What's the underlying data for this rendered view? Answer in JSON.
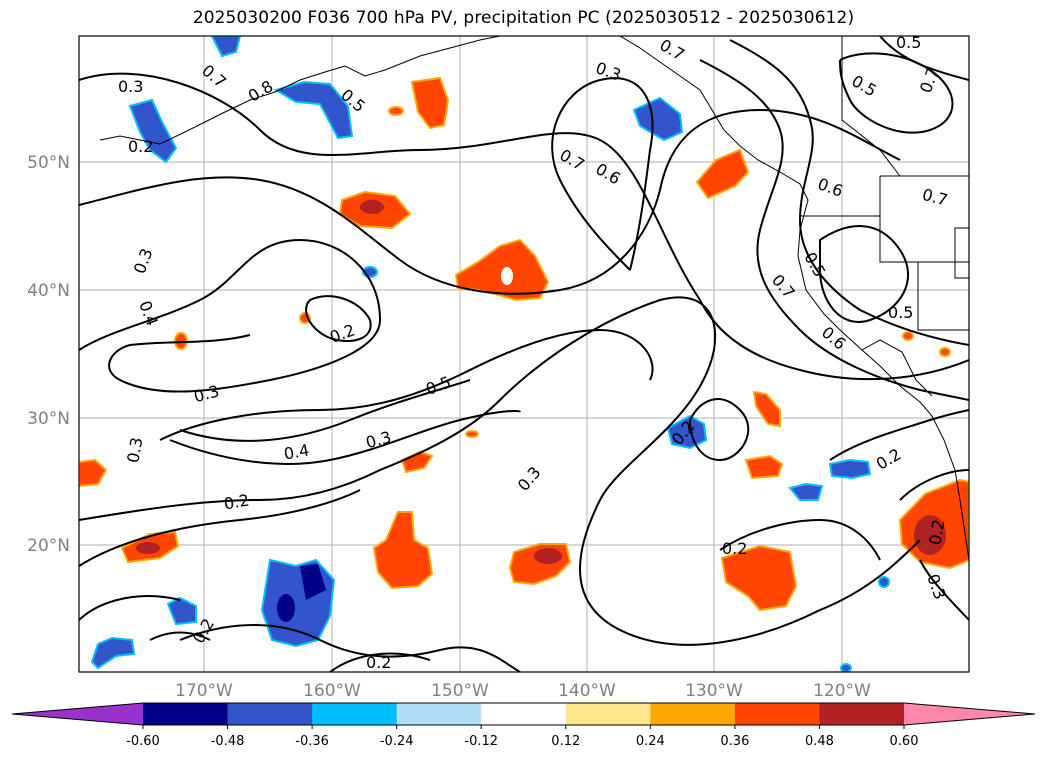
{
  "title": "2025030200 F036 700 hPa PV, precipitation PC (2025030512 - 2025030612)",
  "lat_ticks": [
    "50°N",
    "40°N",
    "30°N",
    "20°N"
  ],
  "lon_ticks": [
    "170°W",
    "160°W",
    "150°W",
    "140°W",
    "130°W",
    "120°W"
  ],
  "colorbar": {
    "levels": [
      "-0.60",
      "-0.48",
      "-0.36",
      "-0.24",
      "-0.12",
      "0.12",
      "0.24",
      "0.36",
      "0.48",
      "0.60"
    ],
    "colors": [
      "#9932cc",
      "#000088",
      "#3355cc",
      "#00bfff",
      "#b0e0f8",
      "#ffffff",
      "#ffe68a",
      "#ffa500",
      "#ff4500",
      "#b22222",
      "#ff88aa"
    ]
  },
  "contour_labels": [
    "0.3",
    "0.7",
    "0.8",
    "0.5",
    "0.2",
    "0.3",
    "0.4",
    "0.2",
    "0.3",
    "0.5",
    "0.3",
    "0.4",
    "0.2",
    "0.3",
    "0.3",
    "0.7",
    "0.6",
    "0.2",
    "0.3",
    "0.2",
    "0.2",
    "0.5",
    "0.7",
    "0.6",
    "0.5",
    "0.7",
    "0.5",
    "0.6",
    "0.7",
    "0.5",
    "0.2",
    "0.2",
    "0.3",
    "0.2",
    "0.7"
  ]
}
